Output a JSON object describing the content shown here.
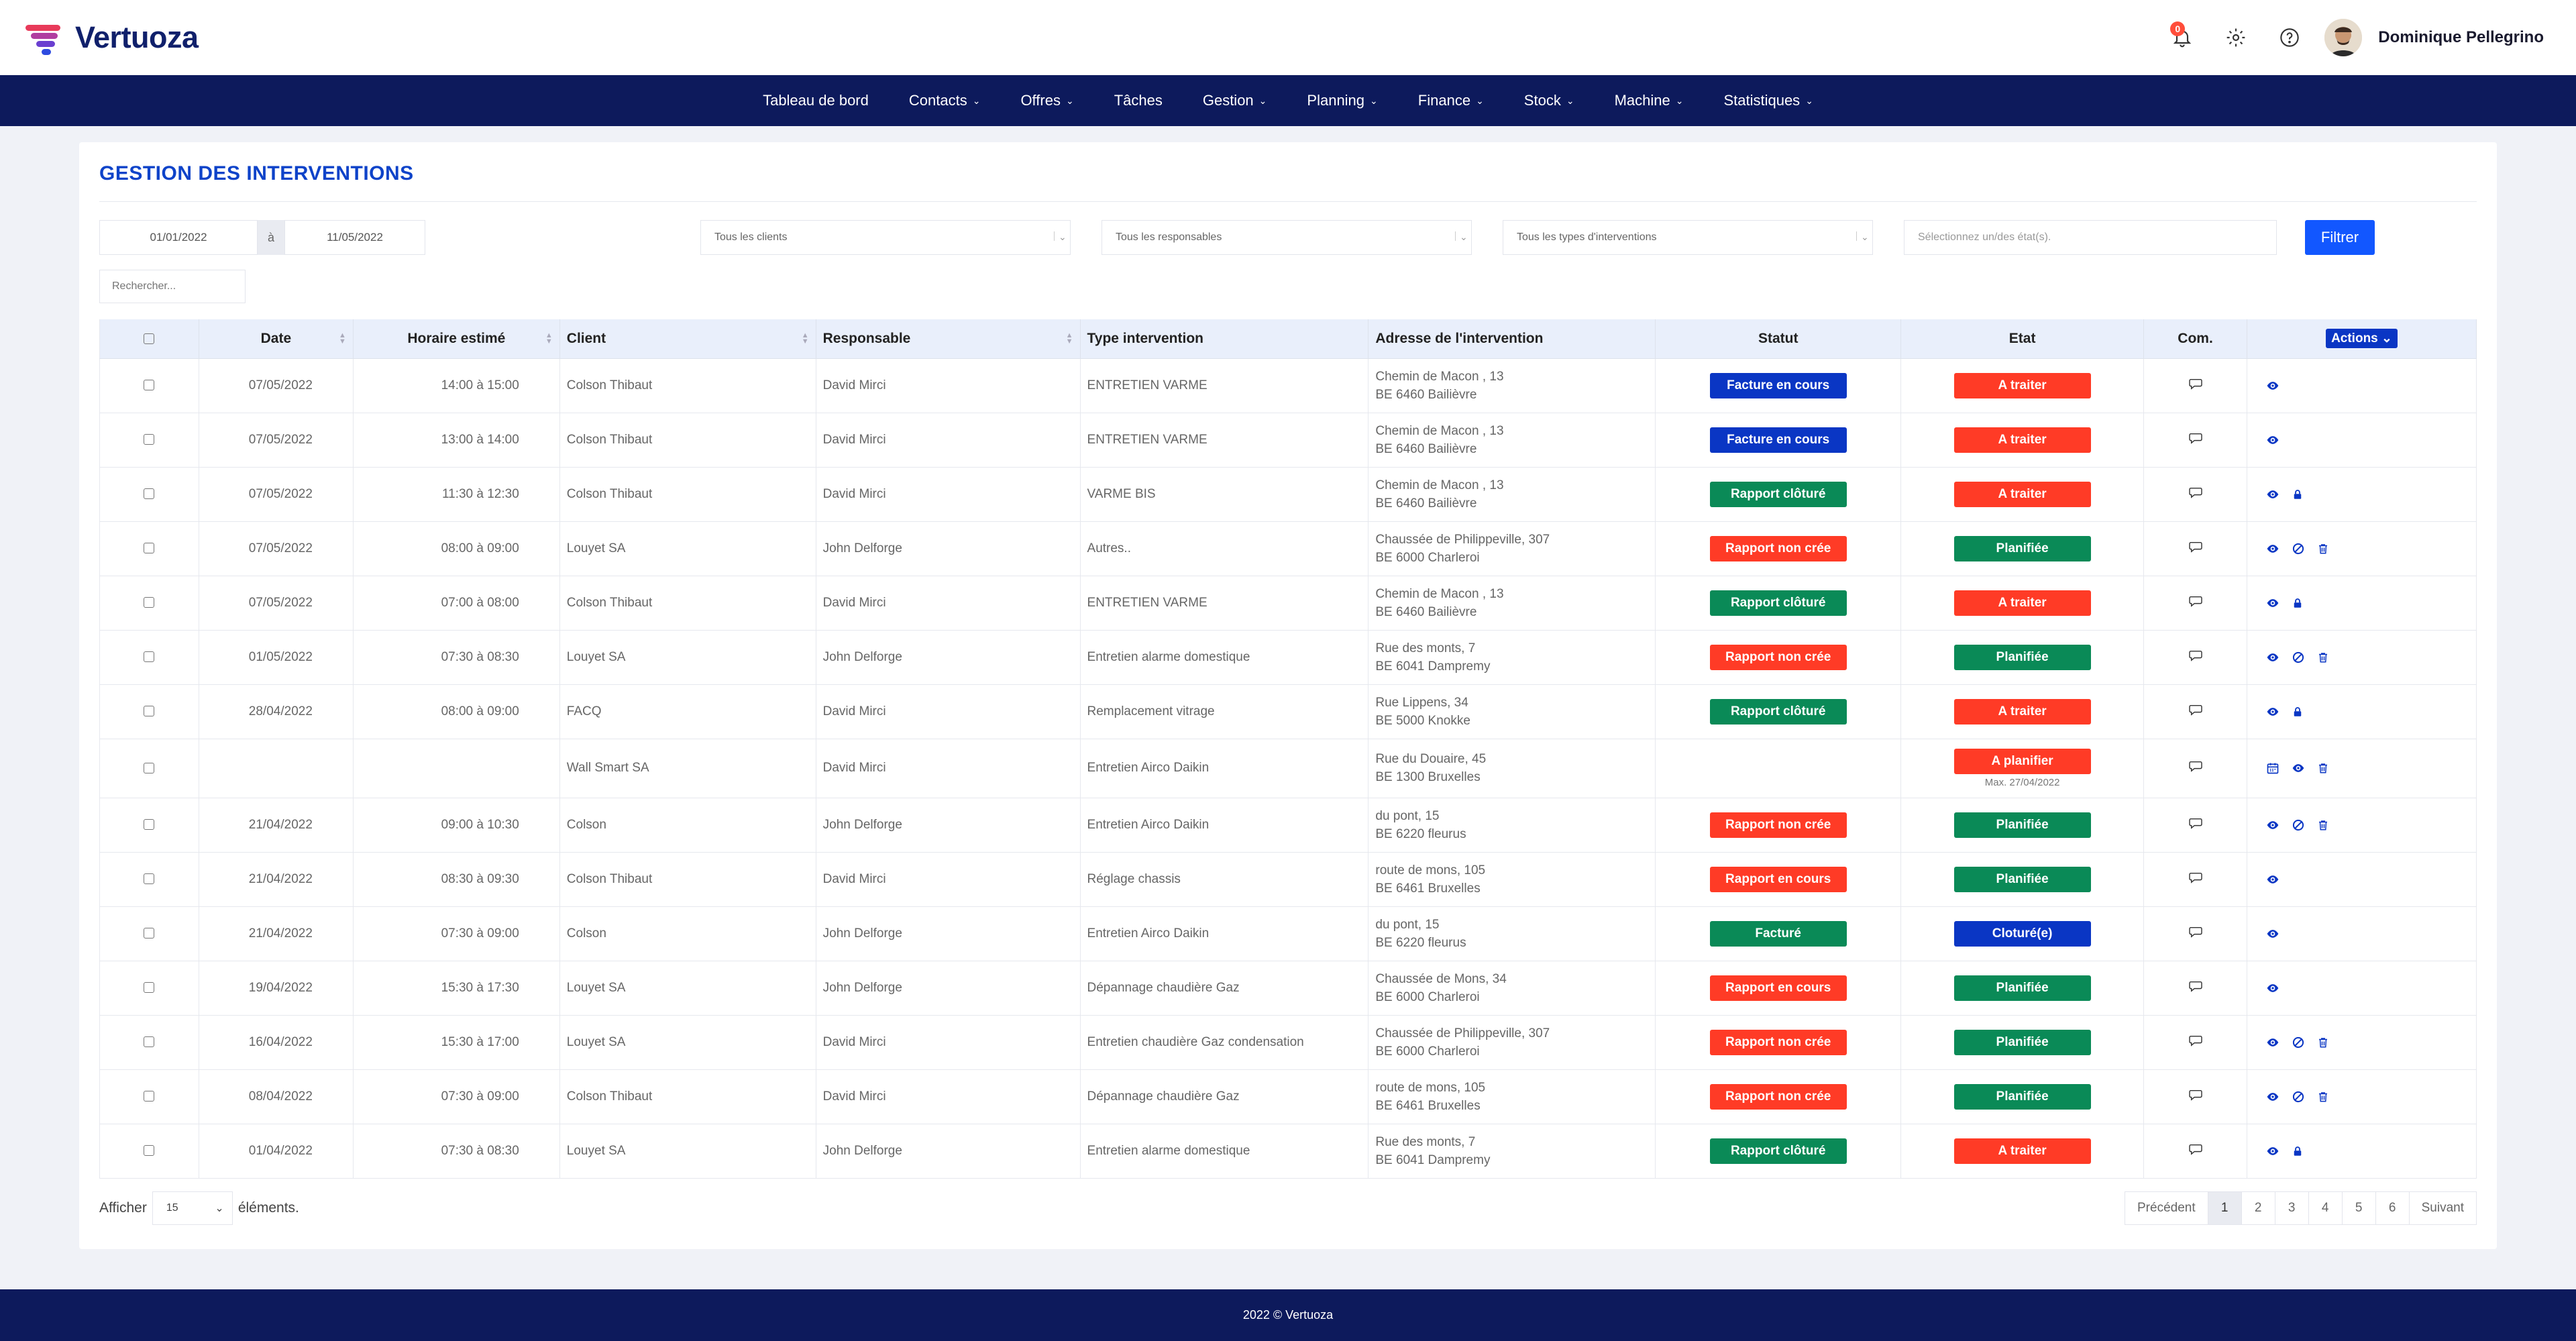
{
  "app": {
    "name": "Vertuoza"
  },
  "header": {
    "notification_count": "0",
    "user_name": "Dominique Pellegrino"
  },
  "nav": [
    {
      "label": "Tableau de bord",
      "dropdown": false
    },
    {
      "label": "Contacts",
      "dropdown": true
    },
    {
      "label": "Offres",
      "dropdown": true
    },
    {
      "label": "Tâches",
      "dropdown": false
    },
    {
      "label": "Gestion",
      "dropdown": true
    },
    {
      "label": "Planning",
      "dropdown": true
    },
    {
      "label": "Finance",
      "dropdown": true
    },
    {
      "label": "Stock",
      "dropdown": true
    },
    {
      "label": "Machine",
      "dropdown": true
    },
    {
      "label": "Statistiques",
      "dropdown": true
    }
  ],
  "page": {
    "title": "GESTION DES INTERVENTIONS"
  },
  "filters": {
    "date_from": "01/01/2022",
    "date_sep": "à",
    "date_to": "11/05/2022",
    "clients": "Tous les clients",
    "responsables": "Tous les responsables",
    "types": "Tous les types d'interventions",
    "etats_placeholder": "Sélectionnez un/des état(s).",
    "filter_label": "Filtrer",
    "search_placeholder": "Rechercher..."
  },
  "table": {
    "headers": {
      "date": "Date",
      "horaire": "Horaire estimé",
      "client": "Client",
      "responsable": "Responsable",
      "type": "Type intervention",
      "adresse": "Adresse de l'intervention",
      "statut": "Statut",
      "etat": "Etat",
      "com": "Com.",
      "actions": "Actions"
    },
    "rows": [
      {
        "date": "07/05/2022",
        "horaire": "14:00 à 15:00",
        "client": "Colson Thibaut",
        "responsable": "David Mirci",
        "type": "ENTRETIEN VARME",
        "addr1": "Chemin de Macon , 13",
        "addr2": "BE 6460 Bailièvre",
        "statut": "Facture en cours",
        "statut_color": "blue",
        "etat": "A traiter",
        "etat_color": "red",
        "etat_sub": "",
        "actions": [
          "eye"
        ]
      },
      {
        "date": "07/05/2022",
        "horaire": "13:00 à 14:00",
        "client": "Colson Thibaut",
        "responsable": "David Mirci",
        "type": "ENTRETIEN VARME",
        "addr1": "Chemin de Macon , 13",
        "addr2": "BE 6460 Bailièvre",
        "statut": "Facture en cours",
        "statut_color": "blue",
        "etat": "A traiter",
        "etat_color": "red",
        "etat_sub": "",
        "actions": [
          "eye"
        ]
      },
      {
        "date": "07/05/2022",
        "horaire": "11:30 à 12:30",
        "client": "Colson Thibaut",
        "responsable": "David Mirci",
        "type": "VARME BIS",
        "addr1": "Chemin de Macon , 13",
        "addr2": "BE 6460 Bailièvre",
        "statut": "Rapport clôturé",
        "statut_color": "green",
        "etat": "A traiter",
        "etat_color": "red",
        "etat_sub": "",
        "actions": [
          "eye",
          "lock"
        ]
      },
      {
        "date": "07/05/2022",
        "horaire": "08:00 à 09:00",
        "client": "Louyet SA",
        "responsable": "John Delforge",
        "type": "Autres..",
        "addr1": "Chaussée de Philippeville, 307",
        "addr2": "BE 6000 Charleroi",
        "statut": "Rapport non crée",
        "statut_color": "red",
        "etat": "Planifiée",
        "etat_color": "green",
        "etat_sub": "",
        "actions": [
          "eye",
          "ban",
          "trash"
        ]
      },
      {
        "date": "07/05/2022",
        "horaire": "07:00 à 08:00",
        "client": "Colson Thibaut",
        "responsable": "David Mirci",
        "type": "ENTRETIEN VARME",
        "addr1": "Chemin de Macon , 13",
        "addr2": "BE 6460 Bailièvre",
        "statut": "Rapport clôturé",
        "statut_color": "green",
        "etat": "A traiter",
        "etat_color": "red",
        "etat_sub": "",
        "actions": [
          "eye",
          "lock"
        ]
      },
      {
        "date": "01/05/2022",
        "horaire": "07:30 à 08:30",
        "client": "Louyet SA",
        "responsable": "John Delforge",
        "type": "Entretien alarme domestique",
        "addr1": "Rue des monts, 7",
        "addr2": "BE 6041 Dampremy",
        "statut": "Rapport non crée",
        "statut_color": "red",
        "etat": "Planifiée",
        "etat_color": "green",
        "etat_sub": "",
        "actions": [
          "eye",
          "ban",
          "trash"
        ]
      },
      {
        "date": "28/04/2022",
        "horaire": "08:00 à 09:00",
        "client": "FACQ",
        "responsable": "David Mirci",
        "type": "Remplacement vitrage",
        "addr1": "Rue Lippens, 34",
        "addr2": "BE 5000 Knokke",
        "statut": "Rapport clôturé",
        "statut_color": "green",
        "etat": "A traiter",
        "etat_color": "red",
        "etat_sub": "",
        "actions": [
          "eye",
          "lock"
        ]
      },
      {
        "date": "",
        "horaire": "",
        "client": "Wall Smart SA",
        "responsable": "David Mirci",
        "type": "Entretien Airco Daikin",
        "addr1": "Rue du Douaire, 45",
        "addr2": "BE 1300 Bruxelles",
        "statut": "",
        "statut_color": "",
        "etat": "A planifier",
        "etat_color": "red",
        "etat_sub": "Max. 27/04/2022",
        "actions": [
          "calendar",
          "eye",
          "trash"
        ]
      },
      {
        "date": "21/04/2022",
        "horaire": "09:00 à 10:30",
        "client": "Colson",
        "responsable": "John Delforge",
        "type": "Entretien Airco Daikin",
        "addr1": "du pont, 15",
        "addr2": "BE 6220 fleurus",
        "statut": "Rapport non crée",
        "statut_color": "red",
        "etat": "Planifiée",
        "etat_color": "green",
        "etat_sub": "",
        "actions": [
          "eye",
          "ban",
          "trash"
        ]
      },
      {
        "date": "21/04/2022",
        "horaire": "08:30 à 09:30",
        "client": "Colson Thibaut",
        "responsable": "David Mirci",
        "type": "Réglage chassis",
        "addr1": "route de mons, 105",
        "addr2": "BE 6461 Bruxelles",
        "statut": "Rapport en cours",
        "statut_color": "red",
        "etat": "Planifiée",
        "etat_color": "green",
        "etat_sub": "",
        "actions": [
          "eye"
        ]
      },
      {
        "date": "21/04/2022",
        "horaire": "07:30 à 09:00",
        "client": "Colson",
        "responsable": "John Delforge",
        "type": "Entretien Airco Daikin",
        "addr1": "du pont, 15",
        "addr2": "BE 6220 fleurus",
        "statut": "Facturé",
        "statut_color": "green",
        "etat": "Cloturé(e)",
        "etat_color": "blue",
        "etat_sub": "",
        "actions": [
          "eye"
        ]
      },
      {
        "date": "19/04/2022",
        "horaire": "15:30 à 17:30",
        "client": "Louyet SA",
        "responsable": "John Delforge",
        "type": "Dépannage chaudière Gaz",
        "addr1": "Chaussée de Mons, 34",
        "addr2": "BE 6000 Charleroi",
        "statut": "Rapport en cours",
        "statut_color": "red",
        "etat": "Planifiée",
        "etat_color": "green",
        "etat_sub": "",
        "actions": [
          "eye"
        ]
      },
      {
        "date": "16/04/2022",
        "horaire": "15:30 à 17:00",
        "client": "Louyet SA",
        "responsable": "David Mirci",
        "type": "Entretien chaudière Gaz condensation",
        "addr1": "Chaussée de Philippeville, 307",
        "addr2": "BE 6000 Charleroi",
        "statut": "Rapport non crée",
        "statut_color": "red",
        "etat": "Planifiée",
        "etat_color": "green",
        "etat_sub": "",
        "actions": [
          "eye",
          "ban",
          "trash"
        ]
      },
      {
        "date": "08/04/2022",
        "horaire": "07:30 à 09:00",
        "client": "Colson Thibaut",
        "responsable": "David Mirci",
        "type": "Dépannage chaudière Gaz",
        "addr1": "route de mons, 105",
        "addr2": "BE 6461 Bruxelles",
        "statut": "Rapport non crée",
        "statut_color": "red",
        "etat": "Planifiée",
        "etat_color": "green",
        "etat_sub": "",
        "actions": [
          "eye",
          "ban",
          "trash"
        ]
      },
      {
        "date": "01/04/2022",
        "horaire": "07:30 à 08:30",
        "client": "Louyet SA",
        "responsable": "John Delforge",
        "type": "Entretien alarme domestique",
        "addr1": "Rue des monts, 7",
        "addr2": "BE 6041 Dampremy",
        "statut": "Rapport clôturé",
        "statut_color": "green",
        "etat": "A traiter",
        "etat_color": "red",
        "etat_sub": "",
        "actions": [
          "eye",
          "lock"
        ]
      }
    ]
  },
  "paging": {
    "show_label": "Afficher",
    "page_size": "15",
    "elements_label": "éléments.",
    "prev": "Précédent",
    "pages": [
      "1",
      "2",
      "3",
      "4",
      "5",
      "6"
    ],
    "current": "1",
    "next": "Suivant"
  },
  "footer": {
    "text": "2022 © Vertuoza"
  },
  "colors": {
    "blue": "#0a36c4",
    "green": "#0a8a57",
    "red": "#ff3b26",
    "nav": "#0d1a5c",
    "accent": "#1257ff"
  }
}
